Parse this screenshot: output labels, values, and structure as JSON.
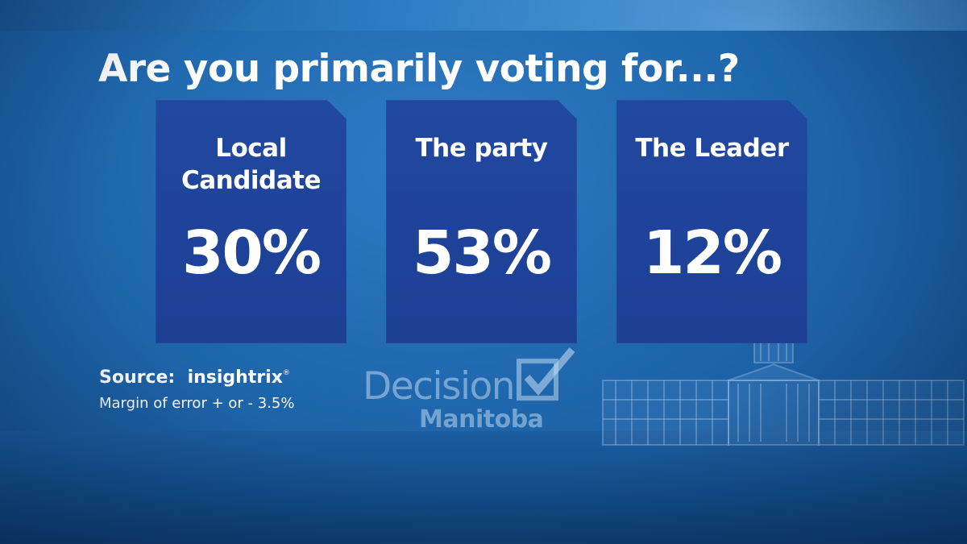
{
  "chart_data": {
    "type": "bar",
    "title": "Are you primarily voting for...?",
    "categories": [
      "Local Candidate",
      "The party",
      "The Leader"
    ],
    "category_lines": [
      [
        "Local",
        "Candidate"
      ],
      [
        "The party"
      ],
      [
        "The Leader"
      ]
    ],
    "values": [
      30,
      53,
      12
    ],
    "value_labels": [
      "30%",
      "53%",
      "12%"
    ],
    "unit": "%"
  },
  "source": {
    "label": "Source:",
    "brand": "insightrix",
    "brand_mark": "®",
    "margin": "Margin of error + or - 3.5%"
  },
  "logo": {
    "line1": "Decision",
    "line2": "Manitoba"
  },
  "icons": [
    "checkmark-icon",
    "legislature-building-icon"
  ],
  "colors": {
    "background": "#1f67ad",
    "card": "#2148a0",
    "text": "#ffffff"
  }
}
